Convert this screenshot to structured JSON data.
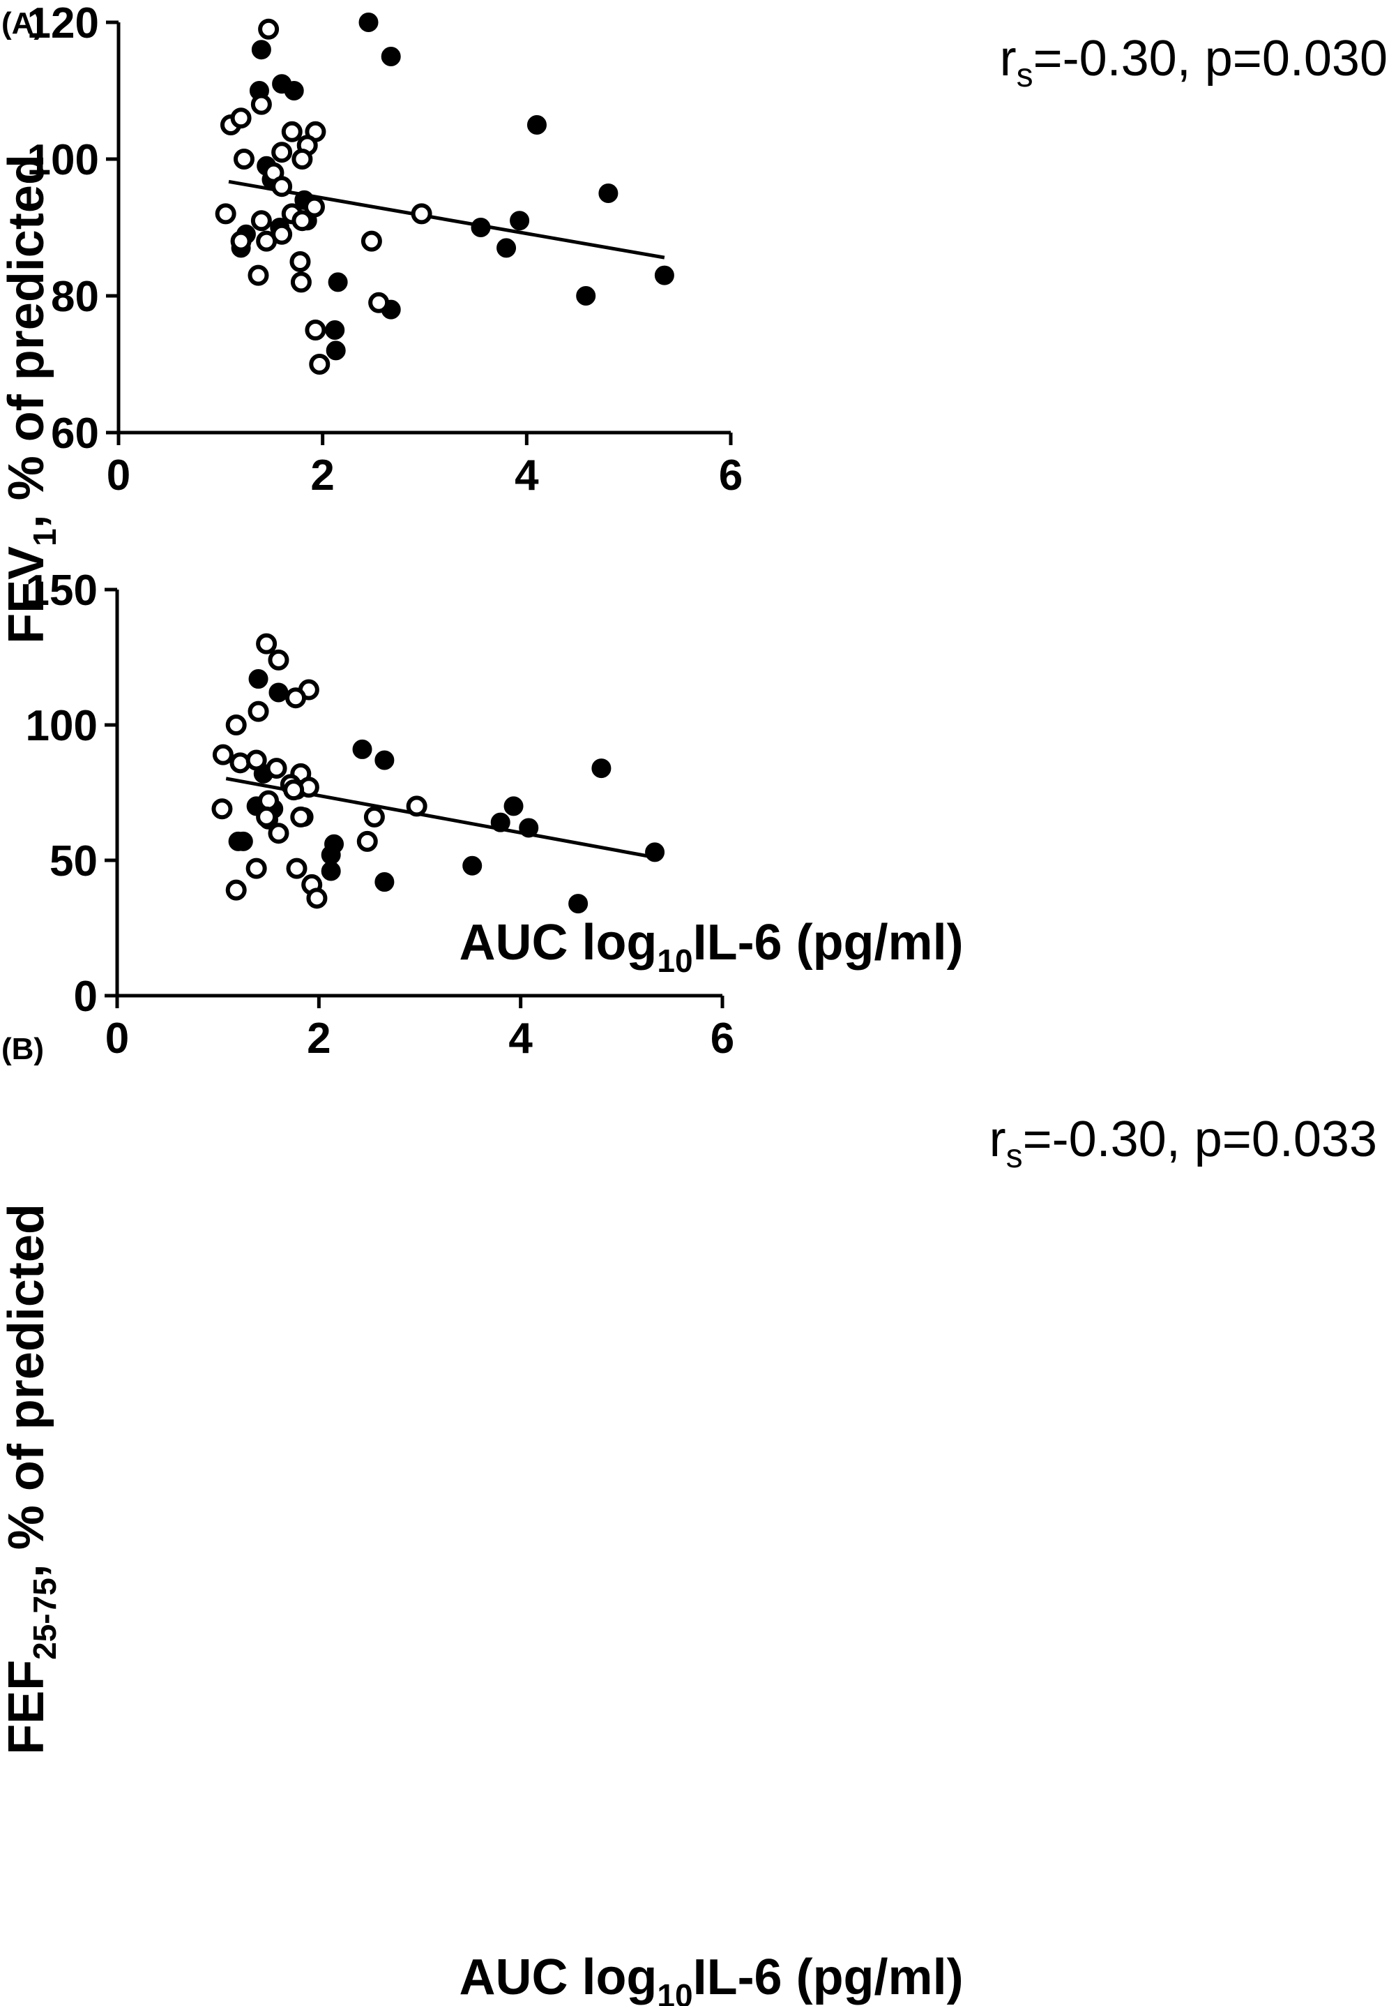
{
  "chart_data": [
    {
      "type": "scatter",
      "panel_label": "(A)",
      "xlabel": {
        "main": "AUC log",
        "sub": "10",
        "rest": "IL-6 (pg/ml)"
      },
      "ylabel": {
        "main": "FEV",
        "sub": "1",
        "rest": ", % of predicted"
      },
      "xlim": [
        0,
        6
      ],
      "ylim": [
        60,
        120
      ],
      "xticks": [
        "0",
        "2",
        "4",
        "6"
      ],
      "yticks": [
        "60",
        "80",
        "100",
        "120"
      ],
      "annotation": {
        "r": "r",
        "sub": "s",
        "rest": "=-0.30, p=0.030"
      },
      "regression": {
        "x": [
          1.08,
          5.35
        ],
        "y": [
          96.7,
          85.6
        ]
      },
      "series": [
        {
          "marker": "filled-circle",
          "points": [
            [
              2.45,
              120
            ],
            [
              2.67,
              115
            ],
            [
              1.4,
              116
            ],
            [
              1.6,
              111
            ],
            [
              1.38,
              110
            ],
            [
              1.72,
              110
            ],
            [
              4.1,
              105
            ],
            [
              1.45,
              99
            ],
            [
              1.5,
              97
            ],
            [
              4.8,
              95
            ],
            [
              1.82,
              94
            ],
            [
              1.58,
              90
            ],
            [
              3.55,
              90
            ],
            [
              3.93,
              91
            ],
            [
              1.25,
              89
            ],
            [
              1.2,
              87
            ],
            [
              3.8,
              87
            ],
            [
              1.85,
              91
            ],
            [
              2.15,
              82
            ],
            [
              2.67,
              78
            ],
            [
              4.58,
              80
            ],
            [
              5.35,
              83
            ],
            [
              2.12,
              75
            ],
            [
              2.13,
              72
            ]
          ]
        },
        {
          "marker": "open-circle",
          "points": [
            [
              1.47,
              119
            ],
            [
              1.4,
              108
            ],
            [
              1.1,
              105
            ],
            [
              1.2,
              106
            ],
            [
              1.7,
              104
            ],
            [
              1.93,
              104
            ],
            [
              1.85,
              102
            ],
            [
              1.6,
              101
            ],
            [
              1.23,
              100
            ],
            [
              1.8,
              100
            ],
            [
              1.52,
              98
            ],
            [
              1.6,
              96
            ],
            [
              1.05,
              92
            ],
            [
              1.7,
              92
            ],
            [
              1.92,
              93
            ],
            [
              2.97,
              92
            ],
            [
              1.4,
              91
            ],
            [
              1.8,
              91
            ],
            [
              1.2,
              88
            ],
            [
              1.45,
              88
            ],
            [
              1.6,
              89
            ],
            [
              2.48,
              88
            ],
            [
              1.78,
              85
            ],
            [
              1.37,
              83
            ],
            [
              1.79,
              82
            ],
            [
              2.55,
              79
            ],
            [
              1.93,
              75
            ],
            [
              1.97,
              70
            ]
          ]
        }
      ]
    },
    {
      "type": "scatter",
      "panel_label": "(B)",
      "xlabel": {
        "main": "AUC log",
        "sub": "10",
        "rest": "IL-6 (pg/ml)"
      },
      "ylabel": {
        "main": "FEF",
        "sub": "25-75",
        "rest": ", % of predicted"
      },
      "xlim": [
        0,
        6
      ],
      "ylim": [
        0,
        150
      ],
      "xticks": [
        "0",
        "2",
        "4",
        "6"
      ],
      "yticks": [
        "0",
        "50",
        "100",
        "150"
      ],
      "annotation": {
        "r": "r",
        "sub": "s",
        "rest": "=-0.30, p=0.033"
      },
      "regression": {
        "x": [
          1.08,
          5.33
        ],
        "y": [
          80.2,
          51.1
        ]
      },
      "series": [
        {
          "marker": "filled-circle",
          "points": [
            [
              1.4,
              117
            ],
            [
              1.6,
              112
            ],
            [
              2.43,
              91
            ],
            [
              2.65,
              87
            ],
            [
              4.8,
              84
            ],
            [
              1.78,
              76
            ],
            [
              1.45,
              82
            ],
            [
              1.38,
              70
            ],
            [
              1.55,
              69
            ],
            [
              1.5,
              65
            ],
            [
              1.85,
              66
            ],
            [
              3.93,
              70
            ],
            [
              3.8,
              64
            ],
            [
              4.08,
              62
            ],
            [
              1.2,
              57
            ],
            [
              1.25,
              57
            ],
            [
              2.15,
              56
            ],
            [
              2.12,
              52
            ],
            [
              2.12,
              46
            ],
            [
              3.52,
              48
            ],
            [
              2.65,
              42
            ],
            [
              4.57,
              34
            ],
            [
              5.33,
              53
            ]
          ]
        },
        {
          "marker": "open-circle",
          "points": [
            [
              1.48,
              130
            ],
            [
              1.6,
              124
            ],
            [
              1.9,
              113
            ],
            [
              1.77,
              110
            ],
            [
              1.4,
              105
            ],
            [
              1.18,
              100
            ],
            [
              1.05,
              89
            ],
            [
              1.22,
              86
            ],
            [
              1.38,
              87
            ],
            [
              1.58,
              84
            ],
            [
              1.82,
              82
            ],
            [
              1.72,
              78
            ],
            [
              1.9,
              77
            ],
            [
              1.75,
              76
            ],
            [
              1.5,
              72
            ],
            [
              1.04,
              69
            ],
            [
              1.48,
              66
            ],
            [
              1.82,
              66
            ],
            [
              2.97,
              70
            ],
            [
              2.55,
              66
            ],
            [
              1.6,
              60
            ],
            [
              2.48,
              57
            ],
            [
              1.38,
              47
            ],
            [
              1.78,
              47
            ],
            [
              1.93,
              41
            ],
            [
              1.18,
              39
            ],
            [
              1.98,
              36
            ]
          ]
        }
      ]
    }
  ]
}
